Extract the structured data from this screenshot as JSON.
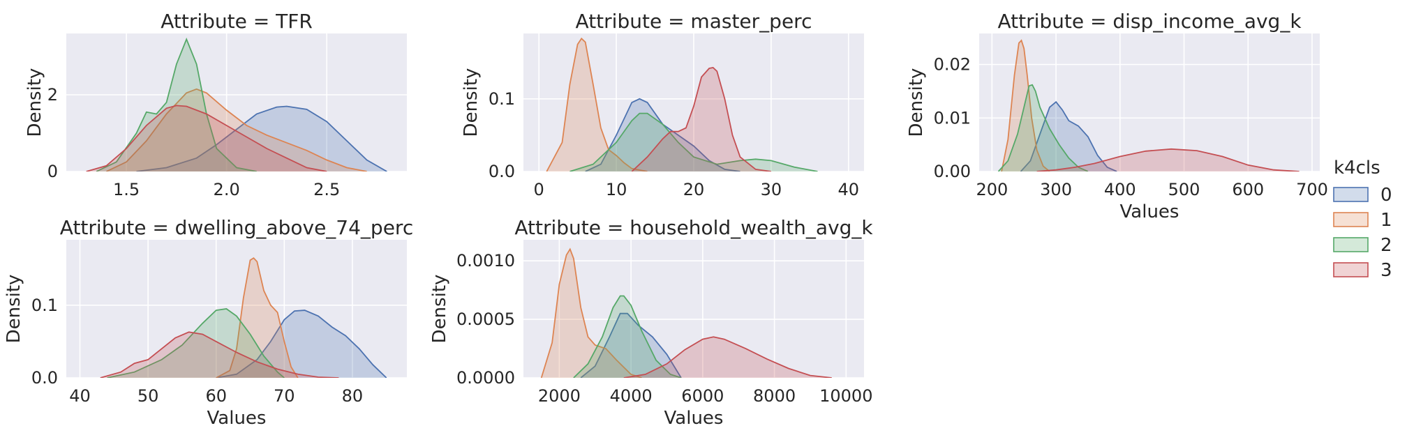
{
  "chart_data": {
    "type": "area",
    "legend": {
      "title": "k4cls",
      "position": "right",
      "labels": [
        "0",
        "1",
        "2",
        "3"
      ]
    },
    "colors": {
      "0": "#4c72b0",
      "1": "#dd8452",
      "2": "#55a868",
      "3": "#c44e52"
    },
    "fill_alpha": 0.25,
    "grid": true,
    "panels": [
      {
        "title": "Attribute = TFR",
        "xlabel": "",
        "ylabel": "Density",
        "xlim": [
          1.2,
          2.9
        ],
        "ylim": [
          0,
          3.6
        ],
        "xticks": [
          "1.5",
          "2.0",
          "2.5"
        ],
        "xtick_values": [
          1.5,
          2.0,
          2.5
        ],
        "yticks": [
          "0",
          "2"
        ],
        "ytick_values": [
          0,
          2
        ],
        "series": [
          {
            "name": "0",
            "x": [
              1.55,
              1.7,
              1.85,
              1.95,
              2.05,
              2.15,
              2.25,
              2.3,
              2.4,
              2.5,
              2.6,
              2.7,
              2.8
            ],
            "y": [
              0.0,
              0.1,
              0.35,
              0.7,
              1.1,
              1.5,
              1.68,
              1.7,
              1.62,
              1.3,
              0.8,
              0.3,
              0.0
            ]
          },
          {
            "name": "1",
            "x": [
              1.4,
              1.5,
              1.6,
              1.7,
              1.8,
              1.85,
              1.9,
              2.0,
              2.1,
              2.2,
              2.3,
              2.4,
              2.5,
              2.6,
              2.7
            ],
            "y": [
              0.0,
              0.25,
              0.8,
              1.5,
              2.05,
              2.15,
              2.05,
              1.6,
              1.2,
              0.95,
              0.75,
              0.55,
              0.3,
              0.1,
              0.0
            ]
          },
          {
            "name": "2",
            "x": [
              1.35,
              1.45,
              1.55,
              1.6,
              1.65,
              1.7,
              1.75,
              1.8,
              1.85,
              1.9,
              1.95,
              2.05,
              2.15
            ],
            "y": [
              0.0,
              0.25,
              1.0,
              1.55,
              1.5,
              1.8,
              2.8,
              3.45,
              2.8,
              1.5,
              0.6,
              0.1,
              0.0
            ]
          },
          {
            "name": "3",
            "x": [
              1.3,
              1.4,
              1.5,
              1.6,
              1.7,
              1.75,
              1.8,
              1.9,
              2.0,
              2.1,
              2.2,
              2.3,
              2.4,
              2.5
            ],
            "y": [
              0.0,
              0.15,
              0.6,
              1.2,
              1.65,
              1.72,
              1.7,
              1.5,
              1.2,
              0.9,
              0.6,
              0.35,
              0.1,
              0.0
            ]
          }
        ]
      },
      {
        "title": "Attribute = master_perc",
        "xlabel": "",
        "ylabel": "Density",
        "xlim": [
          -2,
          42
        ],
        "ylim": [
          0,
          0.19
        ],
        "xticks": [
          "0",
          "10",
          "20",
          "30",
          "40"
        ],
        "xtick_values": [
          0,
          10,
          20,
          30,
          40
        ],
        "yticks": [
          "0.0",
          "0.1"
        ],
        "ytick_values": [
          0,
          0.1
        ],
        "series": [
          {
            "name": "0",
            "x": [
              6,
              8,
              10,
              12,
              13,
              14,
              16,
              18,
              20,
              22,
              24,
              26
            ],
            "y": [
              0.0,
              0.01,
              0.05,
              0.095,
              0.1,
              0.095,
              0.065,
              0.05,
              0.035,
              0.015,
              0.003,
              0.0
            ]
          },
          {
            "name": "1",
            "x": [
              1,
              3,
              4,
              5,
              5.5,
              6,
              7,
              8,
              9,
              10,
              11,
              12,
              14
            ],
            "y": [
              0.0,
              0.04,
              0.12,
              0.175,
              0.183,
              0.178,
              0.12,
              0.06,
              0.03,
              0.022,
              0.012,
              0.004,
              0.0
            ]
          },
          {
            "name": "2",
            "x": [
              4,
              7,
              10,
              12,
              13,
              14,
              16,
              18,
              20,
              23,
              26,
              28,
              30,
              33,
              36
            ],
            "y": [
              0.0,
              0.01,
              0.04,
              0.07,
              0.08,
              0.08,
              0.065,
              0.04,
              0.02,
              0.01,
              0.015,
              0.017,
              0.015,
              0.006,
              0.0
            ]
          },
          {
            "name": "3",
            "x": [
              12,
              14,
              16,
              17,
              18,
              19,
              20,
              21,
              22,
              22.5,
              23,
              24,
              25,
              26,
              28,
              30
            ],
            "y": [
              0.0,
              0.02,
              0.045,
              0.055,
              0.055,
              0.06,
              0.09,
              0.13,
              0.142,
              0.143,
              0.138,
              0.1,
              0.05,
              0.02,
              0.003,
              0.0
            ]
          }
        ]
      },
      {
        "title": "Attribute = disp_income_avg_k",
        "xlabel": "Values",
        "ylabel": "Density",
        "xlim": [
          180,
          712
        ],
        "ylim": [
          0,
          0.0258
        ],
        "xticks": [
          "200",
          "300",
          "400",
          "500",
          "600",
          "700"
        ],
        "xtick_values": [
          200,
          300,
          400,
          500,
          600,
          700
        ],
        "yticks": [
          "0.00",
          "0.01",
          "0.02"
        ],
        "ytick_values": [
          0,
          0.01,
          0.02
        ],
        "series": [
          {
            "name": "0",
            "x": [
              245,
              260,
              275,
              290,
              300,
              310,
              320,
              335,
              350,
              365,
              380,
              395
            ],
            "y": [
              0.0,
              0.002,
              0.007,
              0.012,
              0.013,
              0.0115,
              0.0095,
              0.0085,
              0.0065,
              0.003,
              0.0008,
              0.0
            ]
          },
          {
            "name": "1",
            "x": [
              215,
              225,
              235,
              242,
              246,
              250,
              255,
              262,
              270,
              280,
              290
            ],
            "y": [
              0.0,
              0.006,
              0.018,
              0.024,
              0.0245,
              0.023,
              0.018,
              0.01,
              0.004,
              0.001,
              0.0
            ]
          },
          {
            "name": "2",
            "x": [
              210,
              225,
              240,
              250,
              258,
              263,
              268,
              275,
              290,
              305,
              320,
              335,
              350
            ],
            "y": [
              0.0,
              0.002,
              0.007,
              0.012,
              0.016,
              0.0162,
              0.015,
              0.012,
              0.008,
              0.005,
              0.0025,
              0.0008,
              0.0
            ]
          },
          {
            "name": "3",
            "x": [
              270,
              300,
              330,
              360,
              400,
              440,
              480,
              520,
              560,
              600,
              640,
              680
            ],
            "y": [
              0.0,
              0.0003,
              0.0008,
              0.0015,
              0.0028,
              0.0038,
              0.0042,
              0.0039,
              0.0028,
              0.0012,
              0.0003,
              0.0
            ]
          }
        ]
      },
      {
        "title": "Attribute = dwelling_above_74_perc",
        "xlabel": "Values",
        "ylabel": "Density",
        "xlim": [
          38,
          88
        ],
        "ylim": [
          0,
          0.19
        ],
        "xticks": [
          "40",
          "50",
          "60",
          "70",
          "80"
        ],
        "xtick_values": [
          40,
          50,
          60,
          70,
          80
        ],
        "yticks": [
          "0.0",
          "0.1"
        ],
        "ytick_values": [
          0,
          0.1
        ],
        "series": [
          {
            "name": "0",
            "x": [
              60,
              63,
              66,
              68,
              70,
              71.5,
              73,
              75,
              77,
              79,
              81,
              83,
              85
            ],
            "y": [
              0.0,
              0.005,
              0.025,
              0.05,
              0.08,
              0.092,
              0.093,
              0.085,
              0.07,
              0.058,
              0.04,
              0.018,
              0.0
            ]
          },
          {
            "name": "1",
            "x": [
              60,
              62,
              63,
              64,
              65,
              65.5,
              66,
              67,
              68,
              69,
              70,
              71,
              72
            ],
            "y": [
              0.0,
              0.01,
              0.04,
              0.11,
              0.162,
              0.165,
              0.16,
              0.12,
              0.1,
              0.09,
              0.05,
              0.015,
              0.0
            ]
          },
          {
            "name": "2",
            "x": [
              44,
              48,
              52,
              55,
              58,
              60,
              61.5,
              63,
              65,
              67,
              69,
              70
            ],
            "y": [
              0.0,
              0.008,
              0.025,
              0.045,
              0.075,
              0.093,
              0.095,
              0.085,
              0.06,
              0.03,
              0.008,
              0.0
            ]
          },
          {
            "name": "3",
            "x": [
              43,
              46,
              48,
              50,
              52,
              54,
              56,
              58,
              60,
              63,
              66,
              69,
              72,
              75,
              78
            ],
            "y": [
              0.0,
              0.008,
              0.02,
              0.025,
              0.04,
              0.055,
              0.063,
              0.06,
              0.05,
              0.035,
              0.022,
              0.012,
              0.005,
              0.001,
              0.0
            ]
          }
        ]
      },
      {
        "title": "Attribute = household_wealth_avg_k",
        "xlabel": "Values",
        "ylabel": "Density",
        "xlim": [
          1000,
          10500
        ],
        "ylim": [
          0,
          0.00118
        ],
        "xticks": [
          "2000",
          "4000",
          "6000",
          "8000",
          "10000"
        ],
        "xtick_values": [
          2000,
          4000,
          6000,
          8000,
          10000
        ],
        "yticks": [
          "0.0000",
          "0.0005",
          "0.0010"
        ],
        "ytick_values": [
          0,
          0.0005,
          0.001
        ],
        "series": [
          {
            "name": "0",
            "x": [
              2600,
              3000,
              3400,
              3700,
              3900,
              4200,
              4600,
              5000,
              5400
            ],
            "y": [
              0.0,
              0.0001,
              0.00035,
              0.00055,
              0.00055,
              0.00045,
              0.00035,
              0.0002,
              0.0
            ]
          },
          {
            "name": "1",
            "x": [
              1500,
              1800,
              2000,
              2200,
              2300,
              2400,
              2600,
              2800,
              3000,
              3300,
              3600,
              4000,
              4300
            ],
            "y": [
              0.0,
              0.0003,
              0.0008,
              0.00105,
              0.0011,
              0.00102,
              0.0006,
              0.00035,
              0.00028,
              0.00025,
              0.00015,
              3e-05,
              0.0
            ]
          },
          {
            "name": "2",
            "x": [
              2400,
              2800,
              3200,
              3500,
              3700,
              3800,
              4000,
              4300,
              4700,
              5100,
              5400
            ],
            "y": [
              0.0,
              0.00012,
              0.00035,
              0.0006,
              0.0007,
              0.0007,
              0.00062,
              0.0004,
              0.00015,
              3e-05,
              0.0
            ]
          },
          {
            "name": "3",
            "x": [
              3800,
              4400,
              5000,
              5500,
              6000,
              6300,
              6600,
              7200,
              7800,
              8400,
              9000,
              9600
            ],
            "y": [
              0.0,
              3e-05,
              0.00012,
              0.00024,
              0.00033,
              0.00035,
              0.00033,
              0.00025,
              0.00016,
              8e-05,
              2e-05,
              0.0
            ]
          }
        ]
      }
    ]
  }
}
